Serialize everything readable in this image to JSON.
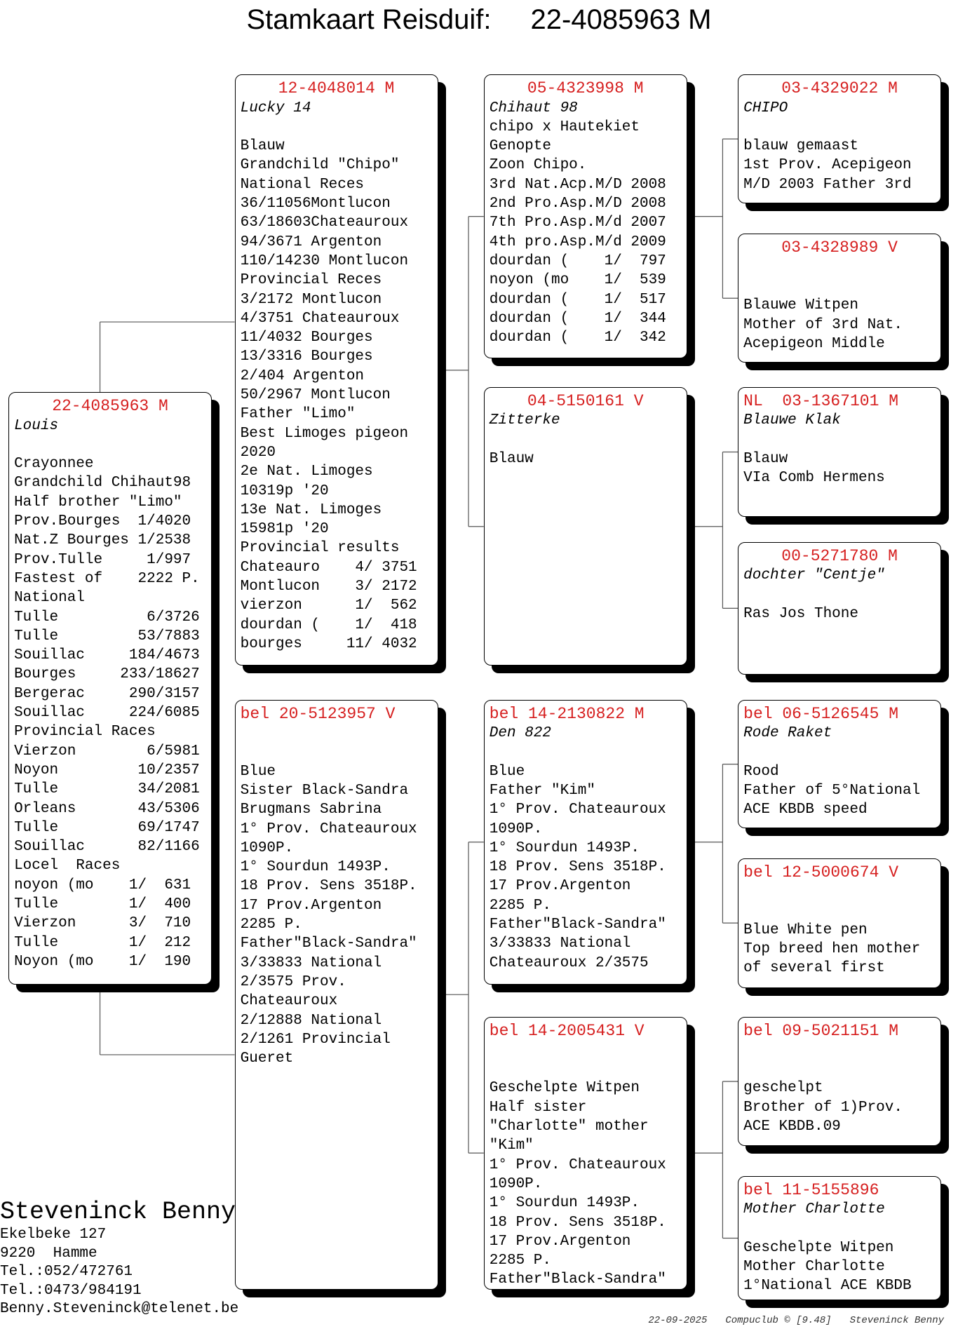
{
  "title": {
    "label": "Stamkaart Reisduif:",
    "ring": "22-4085963 M"
  },
  "pedigree": [
    {
      "id": "22-4085963 M",
      "name": "Louis",
      "lines": [
        "Crayonnee",
        "Grandchild Chihaut98",
        "Half brother \"Limo\"",
        "Prov.Bourges  1/4020",
        "Nat.Z Bourges 1/2538",
        "Prov.Tulle     1/997",
        "Fastest of    2222 P.",
        "National",
        "Tulle          6/3726",
        "Tulle         53/7883",
        "Souillac     184/4673",
        "Bourges     233/18627",
        "Bergerac     290/3157",
        "Souillac     224/6085",
        "Provincial Races",
        "Vierzon        6/5981",
        "Noyon         10/2357",
        "Tulle         34/2081",
        "Orleans       43/5306",
        "Tulle         69/1747",
        "Souillac      82/1166",
        "Locel  Races",
        "noyon (mo    1/  631",
        "Tulle        1/  400",
        "Vierzon      3/  710",
        "Tulle        1/  212",
        "Noyon (mo    1/  190"
      ]
    },
    {
      "id": "12-4048014 M",
      "name": "Lucky 14",
      "lines": [
        "Blauw",
        "Grandchild \"Chipo\"",
        "National Reces",
        "36/11056Montlucon",
        "63/18603Chateauroux",
        "94/3671 Argenton",
        "110/14230 Montlucon",
        "Provincial Reces",
        "3/2172 Montlucon",
        "4/3751 Chateauroux",
        "11/4032 Bourges",
        "13/3316 Bourges",
        "2/404 Argenton",
        "50/2967 Montlucon",
        "Father \"Limo\"",
        "Best Limoges pigeon",
        "2020",
        "2e Nat. Limoges",
        "10319p '20",
        "13e Nat. Limoges",
        "15981p '20",
        "Provincial results",
        "Chateauro    4/ 3751",
        "Montlucon    3/ 2172",
        "vierzon      1/  562",
        "dourdan (    1/  418",
        "bourges     11/ 4032"
      ]
    },
    {
      "id": "bel 20-5123957 V",
      "lines": [
        "Blue",
        "Sister Black-Sandra",
        "Brugmans Sabrina",
        "1° Prov. Chateauroux",
        "1090P.",
        "1° Sourdun 1493P.",
        "18 Prov. Sens 3518P.",
        "17 Prov.Argenton",
        "2285 P.",
        "Father\"Black-Sandra\"",
        "3/33833 National",
        "2/3575 Prov.",
        "Chateauroux",
        "2/12888 National",
        "2/1261 Provincial",
        "Gueret"
      ]
    },
    {
      "id": "05-4323998 M",
      "name": "Chihaut 98",
      "strain": "chipo x Hautekiet",
      "lines": [
        "Genopte",
        "Zoon Chipo.",
        "3rd Nat.Acp.M/D 2008",
        "2nd Pro.Asp.M/D 2008",
        "7th Pro.Asp.M/d 2007",
        "4th pro.Asp.M/d 2009",
        "dourdan (    1/  797",
        "noyon (mo    1/  539",
        "dourdan (    1/  517",
        "dourdan (    1/  344",
        "dourdan (    1/  342"
      ]
    },
    {
      "id": "04-5150161 V",
      "name": "Zitterke",
      "lines": [
        "Blauw"
      ]
    },
    {
      "id": "bel 14-2130822 M",
      "name": "Den 822",
      "lines": [
        "Blue",
        "Father \"Kim\"",
        "1° Prov. Chateauroux",
        "1090P.",
        "1° Sourdun 1493P.",
        "18 Prov. Sens 3518P.",
        "17 Prov.Argenton",
        "2285 P.",
        "Father\"Black-Sandra\"",
        "3/33833 National",
        "Chateauroux 2/3575"
      ]
    },
    {
      "id": "bel 14-2005431 V",
      "lines": [
        "Geschelpte Witpen",
        "Half sister",
        "\"Charlotte\" mother",
        "\"Kim\"",
        "1° Prov. Chateauroux",
        "1090P.",
        "1° Sourdun 1493P.",
        "18 Prov. Sens 3518P.",
        "17 Prov.Argenton",
        "2285 P.",
        "Father\"Black-Sandra\""
      ]
    },
    {
      "id": "03-4329022 M",
      "name": "CHIPO",
      "lines": [
        "blauw gemaast",
        "1st Prov. Acepigeon",
        "M/D 2003 Father 3rd"
      ]
    },
    {
      "id": "03-4328989 V",
      "lines": [
        "Blauwe Witpen",
        "Mother of 3rd Nat.",
        "Acepigeon Middle"
      ]
    },
    {
      "id": "NL  03-1367101 M",
      "name": "Blauwe Klak",
      "lines": [
        "Blauw",
        "VIa Comb Hermens"
      ]
    },
    {
      "id": "00-5271780 M",
      "name": "dochter \"Centje\"",
      "lines": [
        "Ras Jos Thone"
      ]
    },
    {
      "id": "bel 06-5126545 M",
      "name": "Rode Raket",
      "lines": [
        "Rood",
        "Father of 5°National",
        "ACE KBDB speed"
      ]
    },
    {
      "id": "bel 12-5000674 V",
      "lines": [
        "Blue White pen",
        "Top breed hen mother",
        "of several first"
      ]
    },
    {
      "id": "bel 09-5021151 M",
      "lines": [
        "geschelpt",
        "Brother of 1)Prov.",
        "ACE KBDB.09"
      ]
    },
    {
      "id": "bel 11-5155896",
      "name": "Mother Charlotte",
      "lines": [
        "Geschelpte Witpen",
        "Mother Charlotte",
        "1°National ACE KBDB"
      ]
    }
  ],
  "owner": {
    "name": "Steveninck Benny",
    "lines": [
      "Ekelbeke 127",
      "9220  Hamme",
      "Tel.:052/472761",
      "Tel.:0473/984191",
      "Benny.Steveninck@telenet.be"
    ]
  },
  "footer": [
    "22-09-2025",
    "Compuclub © [9.48]",
    "Steveninck Benny"
  ]
}
